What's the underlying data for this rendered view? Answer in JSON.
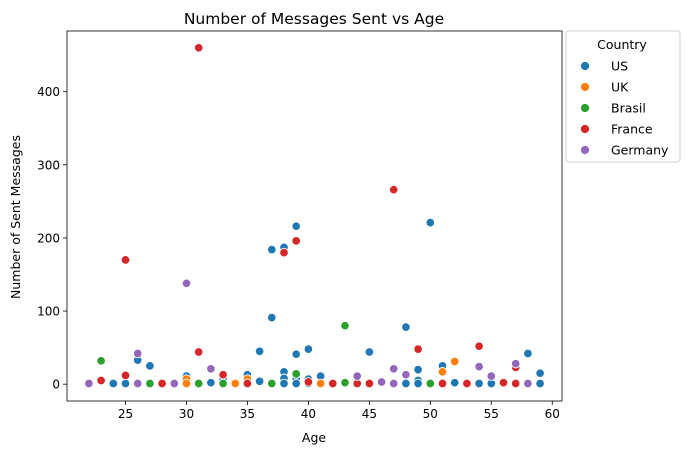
{
  "chart_data": {
    "type": "scatter",
    "title": "Number of Messages Sent vs Age",
    "xlabel": "Age",
    "ylabel": "Number of Sent Messages",
    "xlim": [
      20.2,
      60.8
    ],
    "ylim": [
      -23,
      483
    ],
    "xticks": [
      25,
      30,
      35,
      40,
      45,
      50,
      55,
      60
    ],
    "yticks": [
      0,
      100,
      200,
      300,
      400
    ],
    "grid": false,
    "legend": {
      "title": "Country",
      "placement": "outside-upper-right"
    },
    "series": [
      {
        "name": "US",
        "color": "#1f77b4",
        "points": [
          [
            24,
            1
          ],
          [
            25,
            1
          ],
          [
            26,
            33
          ],
          [
            27,
            25
          ],
          [
            30,
            11
          ],
          [
            30,
            1
          ],
          [
            32,
            2
          ],
          [
            33,
            1
          ],
          [
            33,
            6
          ],
          [
            35,
            13
          ],
          [
            36,
            45
          ],
          [
            36,
            4
          ],
          [
            37,
            184
          ],
          [
            37,
            91
          ],
          [
            38,
            187
          ],
          [
            38,
            17
          ],
          [
            38,
            8
          ],
          [
            38,
            1
          ],
          [
            39,
            216
          ],
          [
            39,
            41
          ],
          [
            39,
            7
          ],
          [
            39,
            1
          ],
          [
            40,
            48
          ],
          [
            40,
            7
          ],
          [
            40,
            1
          ],
          [
            41,
            11
          ],
          [
            41,
            1
          ],
          [
            42,
            1
          ],
          [
            45,
            44
          ],
          [
            45,
            1
          ],
          [
            48,
            78
          ],
          [
            48,
            1
          ],
          [
            49,
            20
          ],
          [
            49,
            5
          ],
          [
            49,
            1
          ],
          [
            50,
            221
          ],
          [
            50,
            1
          ],
          [
            51,
            25
          ],
          [
            52,
            2
          ],
          [
            54,
            1
          ],
          [
            55,
            1
          ],
          [
            58,
            42
          ],
          [
            59,
            15
          ],
          [
            59,
            1
          ]
        ]
      },
      {
        "name": "UK",
        "color": "#ff7f0e",
        "points": [
          [
            28,
            2
          ],
          [
            30,
            7
          ],
          [
            30,
            1
          ],
          [
            34,
            1
          ],
          [
            35,
            7
          ],
          [
            35,
            1
          ],
          [
            41,
            1
          ],
          [
            42,
            1
          ],
          [
            47,
            1
          ],
          [
            51,
            17
          ],
          [
            52,
            31
          ]
        ]
      },
      {
        "name": "Brasil",
        "color": "#2ca02c",
        "points": [
          [
            23,
            32
          ],
          [
            27,
            1
          ],
          [
            31,
            1
          ],
          [
            33,
            1
          ],
          [
            35,
            1
          ],
          [
            37,
            1
          ],
          [
            39,
            14
          ],
          [
            43,
            80
          ],
          [
            43,
            2
          ],
          [
            50,
            1
          ]
        ]
      },
      {
        "name": "France",
        "color": "#d62728",
        "points": [
          [
            23,
            5
          ],
          [
            25,
            170
          ],
          [
            25,
            12
          ],
          [
            28,
            1
          ],
          [
            31,
            460
          ],
          [
            31,
            44
          ],
          [
            33,
            13
          ],
          [
            35,
            1
          ],
          [
            38,
            180
          ],
          [
            39,
            196
          ],
          [
            40,
            3
          ],
          [
            42,
            1
          ],
          [
            44,
            1
          ],
          [
            45,
            1
          ],
          [
            47,
            266
          ],
          [
            49,
            48
          ],
          [
            51,
            1
          ],
          [
            53,
            1
          ],
          [
            54,
            52
          ],
          [
            56,
            2
          ],
          [
            57,
            23
          ],
          [
            57,
            1
          ]
        ]
      },
      {
        "name": "Germany",
        "color": "#9467bd",
        "points": [
          [
            22,
            1
          ],
          [
            26,
            42
          ],
          [
            26,
            1
          ],
          [
            29,
            1
          ],
          [
            30,
            138
          ],
          [
            32,
            21
          ],
          [
            44,
            11
          ],
          [
            46,
            3
          ],
          [
            47,
            21
          ],
          [
            47,
            1
          ],
          [
            48,
            13
          ],
          [
            54,
            24
          ],
          [
            55,
            11
          ],
          [
            57,
            28
          ],
          [
            58,
            1
          ]
        ]
      }
    ]
  }
}
